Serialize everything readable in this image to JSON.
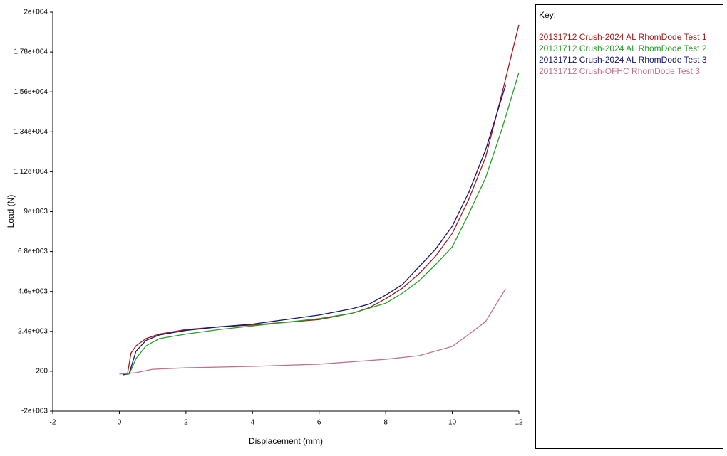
{
  "chart_data": {
    "type": "line",
    "xlabel": "Displacement (mm)",
    "ylabel": "Load (N)",
    "legend_title": "Key:",
    "xlim": [
      -2,
      12
    ],
    "xticks": [
      -2,
      0,
      2,
      4,
      6,
      8,
      10,
      12
    ],
    "ylim": [
      -2000,
      20000
    ],
    "yticks": [
      {
        "value": -2000,
        "label": "-2e+003"
      },
      200,
      {
        "value": 2400,
        "label": "2.4e+003"
      },
      {
        "value": 4600,
        "label": "4.6e+003"
      },
      {
        "value": 6800,
        "label": "6.8e+003"
      },
      {
        "value": 9000,
        "label": "9e+003"
      },
      {
        "value": 11200,
        "label": "1.12e+004"
      },
      {
        "value": 13400,
        "label": "1.34e+004"
      },
      {
        "value": 15600,
        "label": "1.56e+004"
      },
      {
        "value": 17800,
        "label": "1.78e+004"
      },
      {
        "value": 20000,
        "label": "2e+004"
      }
    ],
    "series": [
      {
        "name": "20131712 Crush-2024 AL RhomDode Test 1",
        "color": "#a01818",
        "x": [
          0.1,
          0.25,
          0.35,
          0.5,
          0.8,
          1.2,
          2,
          3,
          4,
          5,
          6,
          7,
          7.5,
          8,
          8.5,
          9,
          9.5,
          10,
          10.5,
          11,
          11.5,
          12
        ],
        "values": [
          0,
          100,
          1200,
          1600,
          2000,
          2250,
          2500,
          2650,
          2750,
          2900,
          3050,
          3400,
          3700,
          4200,
          4780,
          5570,
          6550,
          7800,
          9690,
          12000,
          15570,
          19300
        ]
      },
      {
        "name": "20131712 Crush-2024 AL RhomDode Test 2",
        "color": "#22a022",
        "x": [
          0.1,
          0.3,
          0.5,
          0.8,
          1.2,
          2,
          3,
          4,
          5,
          6,
          7,
          8,
          8.5,
          9,
          9.5,
          10,
          10.5,
          11,
          11.5,
          12
        ],
        "values": [
          0,
          50,
          900,
          1600,
          2000,
          2250,
          2500,
          2700,
          2900,
          3100,
          3400,
          3950,
          4510,
          5180,
          6080,
          7060,
          8900,
          10860,
          13600,
          16670
        ]
      },
      {
        "name": "20131712 Crush-2024 AL RhomDode Test 3",
        "color": "#141470",
        "x": [
          0.1,
          0.3,
          0.5,
          0.8,
          1.2,
          2,
          3,
          4,
          5,
          6,
          7,
          7.5,
          8,
          8.5,
          9,
          9.5,
          10,
          10.5,
          11,
          11.6
        ],
        "values": [
          0,
          100,
          1300,
          1900,
          2200,
          2450,
          2650,
          2800,
          3050,
          3300,
          3650,
          3900,
          4400,
          4980,
          5960,
          6940,
          8200,
          10080,
          12400,
          15960
        ]
      },
      {
        "name": "20131712 Crush-OFHC RhomDode Test 3",
        "color": "#c07090",
        "x": [
          0,
          0.5,
          1,
          2,
          4,
          6,
          8,
          9,
          10,
          10.5,
          11,
          11.6
        ],
        "values": [
          40,
          120,
          310,
          390,
          470,
          590,
          860,
          1060,
          1570,
          2240,
          2940,
          4750
        ]
      }
    ]
  }
}
